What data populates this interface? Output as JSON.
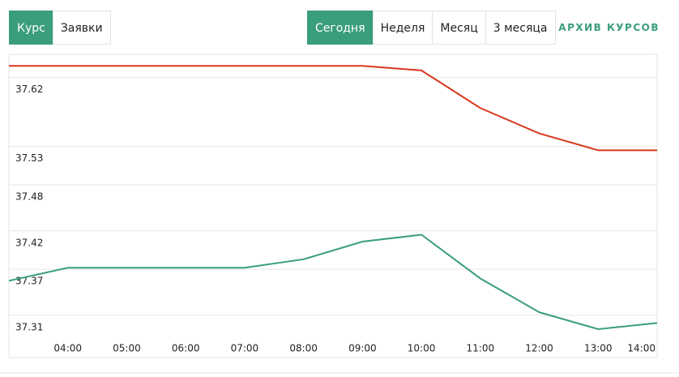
{
  "tabs_left": [
    {
      "label": "Курс",
      "active": true
    },
    {
      "label": "Заявки",
      "active": false
    }
  ],
  "tabs_right": [
    {
      "label": "Сегодня",
      "active": true
    },
    {
      "label": "Неделя",
      "active": false
    },
    {
      "label": "Месяц",
      "active": false
    },
    {
      "label": "3 месяца",
      "active": false
    }
  ],
  "archive_link": "АРХИВ КУРСОВ",
  "chart_data": {
    "type": "line",
    "categories": [
      null,
      "04:00",
      "05:00",
      "06:00",
      "07:00",
      "08:00",
      "09:00",
      "10:00",
      "11:00",
      "12:00",
      "13:00",
      "14:00"
    ],
    "series": [
      {
        "color": "#d9381e",
        "values": [
          37.635,
          37.635,
          37.635,
          37.635,
          37.635,
          37.635,
          37.635,
          37.629,
          37.58,
          37.547,
          37.525,
          37.525
        ]
      },
      {
        "color": "#3a9e7a",
        "values": [
          37.355,
          37.372,
          37.372,
          37.372,
          37.372,
          37.383,
          37.406,
          37.415,
          37.358,
          37.314,
          37.292,
          37.3
        ]
      }
    ],
    "ylim": [
      37.255,
      37.65
    ],
    "yticks": [
      37.31,
      37.37,
      37.42,
      37.48,
      37.53,
      37.62
    ],
    "grid": true
  }
}
